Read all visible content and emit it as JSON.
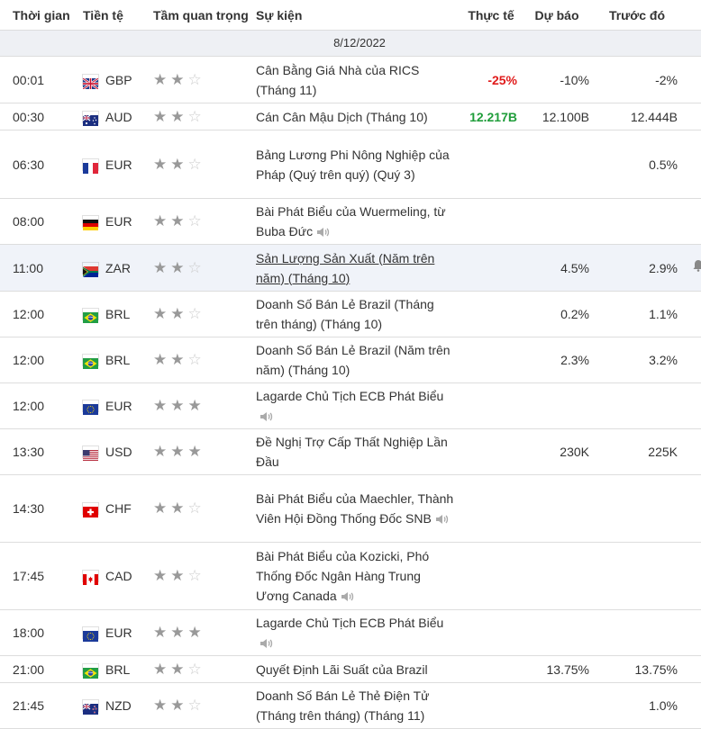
{
  "headers": {
    "time": "Thời gian",
    "currency": "Tiền tệ",
    "importance": "Tầm quan trọng",
    "event": "Sự kiện",
    "actual": "Thực tế",
    "forecast": "Dự báo",
    "previous": "Trước đó"
  },
  "date": "8/12/2022",
  "colors": {
    "negative": "#e01b1b",
    "positive": "#1f9d3a"
  },
  "rows": [
    {
      "time": "00:01",
      "currency": "GBP",
      "flag": "gb-flag",
      "stars": 2,
      "event": "Cân Bằng Giá Nhà của RICS (Tháng 11)",
      "actual": "-25%",
      "actual_color": "negative",
      "forecast": "-10%",
      "previous": "-2%",
      "speech": false,
      "h": 52
    },
    {
      "time": "00:30",
      "currency": "AUD",
      "flag": "au-flag",
      "stars": 2,
      "event": "Cán Cân Mậu Dịch (Tháng 10)",
      "actual": "12.217B",
      "actual_color": "positive",
      "forecast": "12.100B",
      "previous": "12.444B",
      "speech": false,
      "h": 30
    },
    {
      "time": "06:30",
      "currency": "EUR",
      "flag": "fr-flag",
      "stars": 2,
      "event": "Bảng Lương Phi Nông Nghiệp của Pháp (Quý trên quý) (Quý 3)",
      "actual": "",
      "forecast": "",
      "previous": "0.5%",
      "speech": false,
      "h": 76
    },
    {
      "time": "08:00",
      "currency": "EUR",
      "flag": "de-flag",
      "stars": 2,
      "event": "Bài Phát Biểu của Wuermeling, từ Buba Đức",
      "actual": "",
      "forecast": "",
      "previous": "",
      "speech": true,
      "h": 51
    },
    {
      "time": "11:00",
      "currency": "ZAR",
      "flag": "za-flag",
      "stars": 2,
      "event": "Sản Lượng Sản Xuất (Năm trên năm) (Tháng 10)",
      "actual": "",
      "forecast": "4.5%",
      "previous": "2.9%",
      "speech": false,
      "h": 52,
      "highlight": true
    },
    {
      "time": "12:00",
      "currency": "BRL",
      "flag": "br-flag",
      "stars": 2,
      "event": "Doanh Số Bán Lẻ Brazil (Tháng trên tháng) (Tháng 10)",
      "actual": "",
      "forecast": "0.2%",
      "previous": "1.1%",
      "speech": false,
      "h": 51
    },
    {
      "time": "12:00",
      "currency": "BRL",
      "flag": "br-flag",
      "stars": 2,
      "event": "Doanh Số Bán Lẻ Brazil (Năm trên năm) (Tháng 10)",
      "actual": "",
      "forecast": "2.3%",
      "previous": "3.2%",
      "speech": false,
      "h": 51
    },
    {
      "time": "12:00",
      "currency": "EUR",
      "flag": "eu-flag",
      "stars": 3,
      "event": "Lagarde Chủ Tịch ECB Phát Biểu",
      "actual": "",
      "forecast": "",
      "previous": "",
      "speech": true,
      "h": 51
    },
    {
      "time": "13:30",
      "currency": "USD",
      "flag": "us-flag",
      "stars": 3,
      "event": "Đề Nghị Trợ Cấp Thất Nghiệp Lần Đầu",
      "actual": "",
      "forecast": "230K",
      "previous": "225K",
      "speech": false,
      "h": 51
    },
    {
      "time": "14:30",
      "currency": "CHF",
      "flag": "ch-flag",
      "stars": 2,
      "event": "Bài Phát Biểu của Maechler, Thành Viên Hội Đồng Thống Đốc SNB",
      "actual": "",
      "forecast": "",
      "previous": "",
      "speech": true,
      "h": 75
    },
    {
      "time": "17:45",
      "currency": "CAD",
      "flag": "ca-flag",
      "stars": 2,
      "event": "Bài Phát Biểu của Kozicki, Phó Thống Đốc Ngân Hàng Trung Ương Canada",
      "actual": "",
      "forecast": "",
      "previous": "",
      "speech": true,
      "h": 75
    },
    {
      "time": "18:00",
      "currency": "EUR",
      "flag": "eu-flag",
      "stars": 3,
      "event": "Lagarde Chủ Tịch ECB Phát Biểu",
      "actual": "",
      "forecast": "",
      "previous": "",
      "speech": true,
      "h": 51
    },
    {
      "time": "21:00",
      "currency": "BRL",
      "flag": "br-flag",
      "stars": 2,
      "event": "Quyết Định Lãi Suất của Brazil",
      "actual": "",
      "forecast": "13.75%",
      "previous": "13.75%",
      "speech": false,
      "h": 30
    },
    {
      "time": "21:45",
      "currency": "NZD",
      "flag": "nz-flag",
      "stars": 2,
      "event": "Doanh Số Bán Lẻ Thẻ Điện Tử (Tháng trên tháng) (Tháng 11)",
      "actual": "",
      "forecast": "",
      "previous": "1.0%",
      "speech": false,
      "h": 51
    }
  ]
}
